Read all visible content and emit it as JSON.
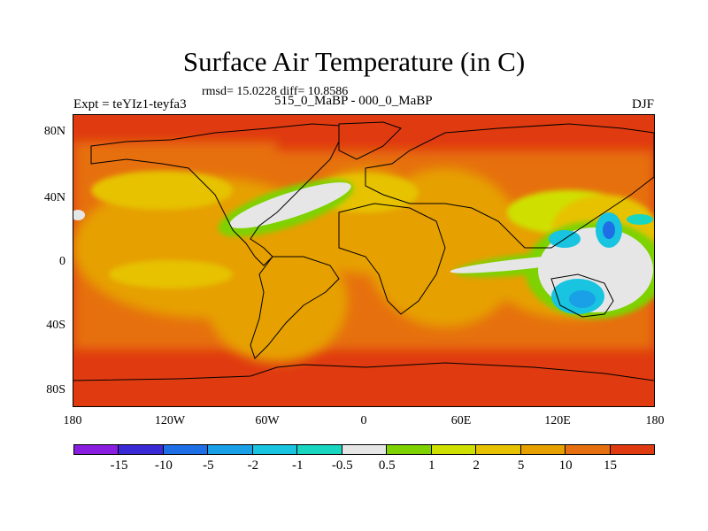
{
  "title": "Surface Air Temperature (in C)",
  "rmsd_text": "rmsd= 15.0228 diff= 10.8586",
  "expt_text": "Expt = teYIz1-teyfa3",
  "period_text": "515_0_MaBP - 000_0_MaBP",
  "season_text": "DJF",
  "y_ticks": [
    "80N",
    "40N",
    "0",
    "40S",
    "80S"
  ],
  "x_ticks": [
    "180",
    "120W",
    "60W",
    "0",
    "60E",
    "120E",
    "180"
  ],
  "colorbar": {
    "colors": [
      "#8a1ee0",
      "#3a2ad6",
      "#1e6ee6",
      "#1aa0e6",
      "#18c4e0",
      "#18d6c0",
      "#e6e6e6",
      "#7ed200",
      "#cfe000",
      "#e6c200",
      "#e6a000",
      "#e66f10",
      "#e03a10"
    ],
    "labels": [
      "-15",
      "-10",
      "-5",
      "-2",
      "-1",
      "-0.5",
      "0.5",
      "1",
      "2",
      "5",
      "10",
      "15"
    ]
  }
}
